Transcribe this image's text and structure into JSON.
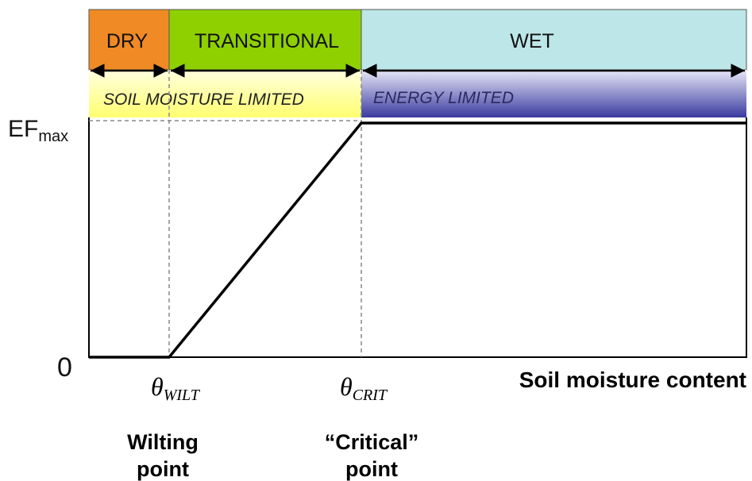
{
  "regions": [
    {
      "label": "DRY"
    },
    {
      "label": "TRANSITIONAL"
    },
    {
      "label": "WET"
    }
  ],
  "limits": [
    {
      "label": "SOIL MOISTURE LIMITED"
    },
    {
      "label": "ENERGY LIMITED"
    }
  ],
  "y_axis": {
    "top": {
      "main": "EF",
      "sub": "max"
    },
    "bottom": "0"
  },
  "x_axis": {
    "title": "Soil moisture content",
    "points": [
      {
        "symbol": "θ",
        "sub": "WILT",
        "name": [
          "Wilting",
          "point"
        ]
      },
      {
        "symbol": "θ",
        "sub": "CRIT",
        "name": [
          "“Critical”",
          "point"
        ]
      }
    ]
  }
}
